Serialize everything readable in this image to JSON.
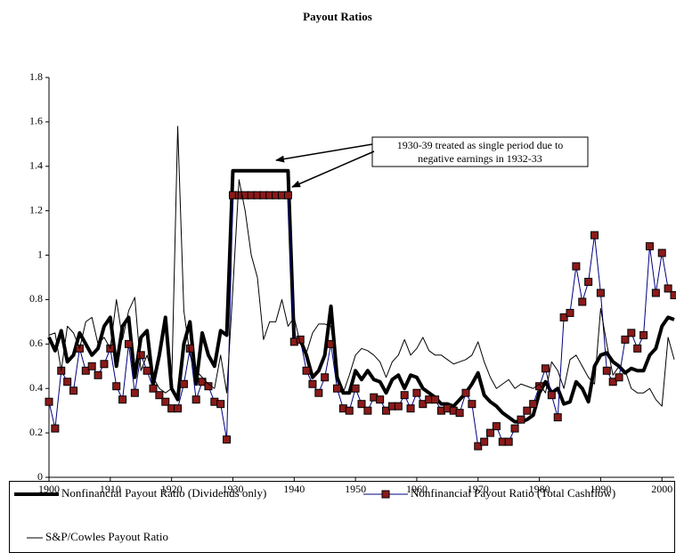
{
  "chart_data": {
    "type": "line",
    "title": "Payout Ratios",
    "annotation": [
      "1930-39 treated as single period due to",
      "negative earnings in 1932-33"
    ],
    "x": [
      1900,
      1901,
      1902,
      1903,
      1904,
      1905,
      1906,
      1907,
      1908,
      1909,
      1910,
      1911,
      1912,
      1913,
      1914,
      1915,
      1916,
      1917,
      1918,
      1919,
      1920,
      1921,
      1922,
      1923,
      1924,
      1925,
      1926,
      1927,
      1928,
      1929,
      1930,
      1931,
      1932,
      1933,
      1934,
      1935,
      1936,
      1937,
      1938,
      1939,
      1940,
      1941,
      1942,
      1943,
      1944,
      1945,
      1946,
      1947,
      1948,
      1949,
      1950,
      1951,
      1952,
      1953,
      1954,
      1955,
      1956,
      1957,
      1958,
      1959,
      1960,
      1961,
      1962,
      1963,
      1964,
      1965,
      1966,
      1967,
      1968,
      1969,
      1970,
      1971,
      1972,
      1973,
      1974,
      1975,
      1976,
      1977,
      1978,
      1979,
      1980,
      1981,
      1982,
      1983,
      1984,
      1985,
      1986,
      1987,
      1988,
      1989,
      1990,
      1991,
      1992,
      1993,
      1994,
      1995,
      1996,
      1997,
      1998,
      1999,
      2000,
      2001,
      2002
    ],
    "xlim": [
      1900,
      2002
    ],
    "xticks": [
      1900,
      1910,
      1920,
      1930,
      1940,
      1950,
      1960,
      1970,
      1980,
      1990,
      2000
    ],
    "ylim": [
      0,
      1.8
    ],
    "yticks": [
      0,
      0.2,
      0.4,
      0.6,
      0.8,
      1,
      1.2,
      1.4,
      1.6,
      1.8
    ],
    "grid": false,
    "legend": "bottom",
    "series": [
      {
        "name": "Nonfinancial Payout Ratio (Dividends only)",
        "color": "#000000",
        "style": "thick",
        "values": [
          0.63,
          0.57,
          0.66,
          0.52,
          0.55,
          0.65,
          0.6,
          0.55,
          0.58,
          0.68,
          0.72,
          0.5,
          0.68,
          0.72,
          0.45,
          0.63,
          0.66,
          0.42,
          0.55,
          0.72,
          0.4,
          0.35,
          0.6,
          0.7,
          0.42,
          0.65,
          0.55,
          0.5,
          0.66,
          0.64,
          1.38,
          1.38,
          1.38,
          1.38,
          1.38,
          1.38,
          1.38,
          1.38,
          1.38,
          1.38,
          0.61,
          0.62,
          0.55,
          0.45,
          0.48,
          0.55,
          0.77,
          0.45,
          0.38,
          0.38,
          0.48,
          0.44,
          0.48,
          0.44,
          0.43,
          0.38,
          0.44,
          0.46,
          0.4,
          0.46,
          0.45,
          0.4,
          0.38,
          0.36,
          0.33,
          0.33,
          0.32,
          0.35,
          0.38,
          0.42,
          0.47,
          0.37,
          0.34,
          0.32,
          0.29,
          0.27,
          0.25,
          0.25,
          0.26,
          0.28,
          0.38,
          0.43,
          0.38,
          0.4,
          0.33,
          0.34,
          0.43,
          0.4,
          0.34,
          0.5,
          0.55,
          0.56,
          0.52,
          0.5,
          0.47,
          0.49,
          0.48,
          0.48,
          0.55,
          0.58,
          0.68,
          0.72,
          0.71
        ]
      },
      {
        "name": "Nonfinancial Payout Ratio (Total Cashflow)",
        "color": "#000080",
        "marker_color": "#8b1a1a",
        "style": "marker",
        "values": [
          0.34,
          0.22,
          0.48,
          0.43,
          0.39,
          0.58,
          0.48,
          0.5,
          0.46,
          0.51,
          0.58,
          0.41,
          0.35,
          0.6,
          0.38,
          0.55,
          0.48,
          0.4,
          0.37,
          0.34,
          0.31,
          0.31,
          0.42,
          0.58,
          0.35,
          0.43,
          0.41,
          0.34,
          0.33,
          0.17,
          1.27,
          1.27,
          1.27,
          1.27,
          1.27,
          1.27,
          1.27,
          1.27,
          1.27,
          1.27,
          0.61,
          0.62,
          0.48,
          0.42,
          0.38,
          0.45,
          0.6,
          0.4,
          0.31,
          0.3,
          0.4,
          0.33,
          0.3,
          0.36,
          0.35,
          0.3,
          0.32,
          0.32,
          0.37,
          0.31,
          0.38,
          0.33,
          0.35,
          0.35,
          0.3,
          0.31,
          0.3,
          0.29,
          0.38,
          0.33,
          0.14,
          0.16,
          0.2,
          0.23,
          0.16,
          0.16,
          0.22,
          0.26,
          0.3,
          0.33,
          0.41,
          0.49,
          0.37,
          0.27,
          0.72,
          0.74,
          0.95,
          0.79,
          0.88,
          1.09,
          0.83,
          0.48,
          0.43,
          0.45,
          0.62,
          0.65,
          0.58,
          0.64,
          1.04,
          0.83,
          1.01,
          0.85,
          0.82
        ]
      },
      {
        "name": "S&P/Cowles Payout Ratio",
        "color": "#000000",
        "style": "thin",
        "values": [
          0.64,
          0.65,
          0.48,
          0.68,
          0.65,
          0.58,
          0.7,
          0.72,
          0.6,
          0.63,
          0.58,
          0.8,
          0.62,
          0.75,
          0.81,
          0.48,
          0.55,
          0.45,
          0.4,
          0.38,
          0.4,
          1.58,
          0.75,
          0.55,
          0.48,
          0.45,
          0.42,
          0.4,
          0.55,
          0.38,
          0.85,
          1.34,
          1.2,
          1.0,
          0.9,
          0.62,
          0.7,
          0.7,
          0.8,
          0.68,
          0.72,
          0.6,
          0.56,
          0.65,
          0.69,
          0.69,
          0.68,
          0.47,
          0.38,
          0.46,
          0.55,
          0.58,
          0.57,
          0.55,
          0.52,
          0.45,
          0.52,
          0.55,
          0.62,
          0.55,
          0.58,
          0.63,
          0.57,
          0.55,
          0.55,
          0.53,
          0.51,
          0.52,
          0.53,
          0.55,
          0.61,
          0.52,
          0.45,
          0.4,
          0.42,
          0.44,
          0.4,
          0.42,
          0.41,
          0.4,
          0.42,
          0.38,
          0.52,
          0.48,
          0.4,
          0.53,
          0.55,
          0.5,
          0.45,
          0.42,
          0.76,
          0.6,
          0.46,
          0.5,
          0.48,
          0.4,
          0.38,
          0.38,
          0.4,
          0.35,
          0.32,
          0.63,
          0.53
        ]
      }
    ]
  }
}
